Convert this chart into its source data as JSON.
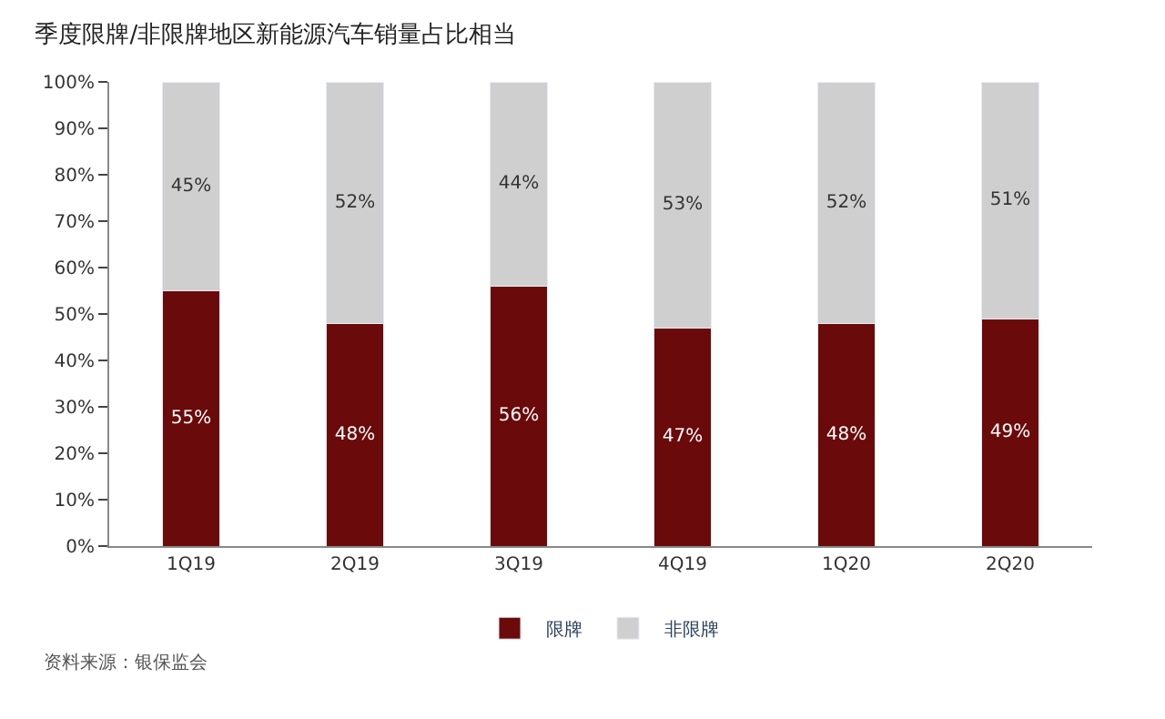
{
  "chart_data": {
    "type": "bar",
    "stacked": true,
    "title": "季度限牌/非限牌地区新能源汽车销量占比相当",
    "categories": [
      "1Q19",
      "2Q19",
      "3Q19",
      "4Q19",
      "1Q20",
      "2Q20"
    ],
    "series": [
      {
        "name": "限牌",
        "color": "#6b0a0a",
        "values": [
          55,
          48,
          56,
          47,
          48,
          49
        ],
        "value_labels": [
          "55%",
          "48%",
          "56%",
          "47%",
          "48%",
          "49%"
        ]
      },
      {
        "name": "非限牌",
        "color": "#cfcfcf",
        "values": [
          45,
          52,
          44,
          53,
          52,
          51
        ],
        "value_labels": [
          "45%",
          "52%",
          "44%",
          "53%",
          "52%",
          "51%"
        ]
      }
    ],
    "ylim": [
      0,
      100
    ],
    "yticks": [
      {
        "value": 0,
        "label": "0%"
      },
      {
        "value": 10,
        "label": "10%"
      },
      {
        "value": 20,
        "label": "20%"
      },
      {
        "value": 30,
        "label": "30%"
      },
      {
        "value": 40,
        "label": "40%"
      },
      {
        "value": 50,
        "label": "50%"
      },
      {
        "value": 60,
        "label": "60%"
      },
      {
        "value": 70,
        "label": "70%"
      },
      {
        "value": 80,
        "label": "80%"
      },
      {
        "value": 90,
        "label": "90%"
      },
      {
        "value": 100,
        "label": "100%"
      }
    ],
    "legend": "bottom",
    "annotations": [
      "资料来源：银保监会"
    ]
  }
}
